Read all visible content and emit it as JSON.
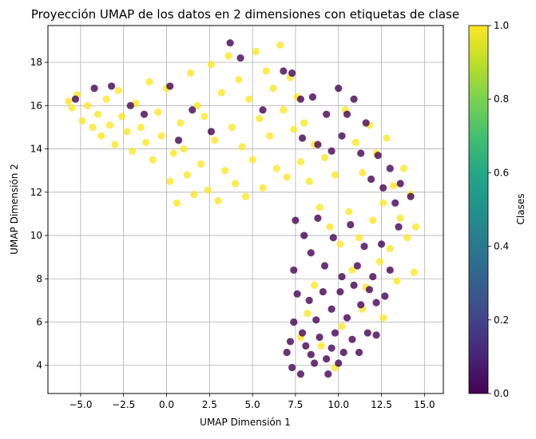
{
  "chart_data": {
    "type": "scatter",
    "title": "Proyección UMAP de los datos en 2 dimensiones con etiquetas de clase",
    "xlabel": "UMAP Dimensión 1",
    "ylabel": "UMAP Dimensión 2",
    "xlim": [
      -6.9,
      16.1
    ],
    "ylim": [
      2.7,
      19.7
    ],
    "xticks": [
      -5.0,
      -2.5,
      0.0,
      2.5,
      5.0,
      7.5,
      10.0,
      12.5,
      15.0
    ],
    "xtick_labels": [
      "−5.0",
      "−2.5",
      "0.0",
      "2.5",
      "5.0",
      "7.5",
      "10.0",
      "12.5",
      "15.0"
    ],
    "yticks": [
      4,
      6,
      8,
      10,
      12,
      14,
      16,
      18
    ],
    "ytick_labels": [
      "4",
      "6",
      "8",
      "10",
      "12",
      "14",
      "16",
      "18"
    ],
    "grid": true,
    "colorbar": {
      "label": "Clases",
      "range": [
        0.0,
        1.0
      ],
      "ticks": [
        0.0,
        0.2,
        0.4,
        0.6,
        0.8,
        1.0
      ],
      "tick_labels": [
        "0.0",
        "0.2",
        "0.4",
        "0.6",
        "0.8",
        "1.0"
      ],
      "colormap": "viridis"
    },
    "series": [
      {
        "class": 1,
        "color": "#fde725",
        "points": [
          [
            -5.7,
            16.2
          ],
          [
            -5.5,
            15.9
          ],
          [
            -5.2,
            16.5
          ],
          [
            -4.9,
            15.3
          ],
          [
            -4.6,
            16.0
          ],
          [
            -4.3,
            15.0
          ],
          [
            -4.0,
            15.6
          ],
          [
            -3.8,
            14.6
          ],
          [
            -3.5,
            16.3
          ],
          [
            -3.3,
            15.1
          ],
          [
            -3.0,
            14.2
          ],
          [
            -2.8,
            16.7
          ],
          [
            -2.6,
            15.5
          ],
          [
            -2.3,
            14.8
          ],
          [
            -2.0,
            13.9
          ],
          [
            -1.8,
            16.1
          ],
          [
            -1.5,
            15.0
          ],
          [
            -1.2,
            14.3
          ],
          [
            -1.0,
            17.1
          ],
          [
            -0.8,
            13.5
          ],
          [
            -0.5,
            15.7
          ],
          [
            -0.3,
            14.6
          ],
          [
            0.0,
            16.8
          ],
          [
            0.2,
            12.5
          ],
          [
            0.4,
            13.8
          ],
          [
            0.6,
            11.5
          ],
          [
            0.8,
            15.2
          ],
          [
            1.0,
            14.0
          ],
          [
            1.2,
            12.8
          ],
          [
            1.4,
            17.5
          ],
          [
            1.6,
            11.9
          ],
          [
            1.8,
            16.0
          ],
          [
            2.0,
            13.3
          ],
          [
            2.2,
            15.5
          ],
          [
            2.4,
            12.1
          ],
          [
            2.6,
            17.9
          ],
          [
            2.8,
            14.4
          ],
          [
            3.0,
            11.6
          ],
          [
            3.2,
            16.6
          ],
          [
            3.4,
            13.0
          ],
          [
            3.6,
            18.3
          ],
          [
            3.8,
            15.0
          ],
          [
            4.0,
            12.4
          ],
          [
            4.2,
            17.2
          ],
          [
            4.4,
            14.1
          ],
          [
            4.6,
            11.8
          ],
          [
            4.8,
            16.3
          ],
          [
            5.0,
            13.5
          ],
          [
            5.2,
            18.5
          ],
          [
            5.4,
            15.4
          ],
          [
            5.6,
            12.2
          ],
          [
            5.8,
            17.6
          ],
          [
            6.0,
            14.6
          ],
          [
            6.2,
            16.8
          ],
          [
            6.4,
            13.1
          ],
          [
            6.6,
            18.8
          ],
          [
            6.8,
            15.8
          ],
          [
            7.0,
            12.7
          ],
          [
            7.2,
            17.3
          ],
          [
            7.4,
            14.9
          ],
          [
            7.6,
            16.4
          ],
          [
            7.8,
            13.4
          ],
          [
            8.0,
            15.2
          ],
          [
            8.3,
            12.5
          ],
          [
            8.6,
            14.2
          ],
          [
            8.9,
            11.3
          ],
          [
            9.2,
            13.6
          ],
          [
            9.5,
            10.4
          ],
          [
            9.8,
            12.8
          ],
          [
            10.1,
            9.6
          ],
          [
            10.4,
            15.8
          ],
          [
            10.6,
            11.1
          ],
          [
            10.8,
            8.4
          ],
          [
            11.0,
            14.3
          ],
          [
            11.2,
            9.9
          ],
          [
            11.4,
            12.9
          ],
          [
            11.6,
            7.6
          ],
          [
            11.8,
            15.1
          ],
          [
            12.0,
            10.7
          ],
          [
            12.2,
            13.8
          ],
          [
            12.4,
            8.8
          ],
          [
            12.6,
            11.5
          ],
          [
            12.8,
            14.5
          ],
          [
            13.0,
            9.4
          ],
          [
            13.2,
            12.3
          ],
          [
            13.4,
            7.9
          ],
          [
            13.6,
            10.8
          ],
          [
            13.8,
            13.1
          ],
          [
            14.0,
            9.9
          ],
          [
            14.2,
            11.9
          ],
          [
            14.4,
            8.3
          ],
          [
            14.5,
            10.4
          ],
          [
            8.2,
            6.4
          ],
          [
            9.0,
            4.9
          ],
          [
            10.2,
            5.8
          ],
          [
            11.4,
            6.6
          ],
          [
            12.6,
            6.2
          ],
          [
            8.6,
            7.7
          ],
          [
            9.8,
            3.9
          ],
          [
            7.8,
            5.3
          ]
        ]
      },
      {
        "class": 0,
        "color": "#440154",
        "points": [
          [
            -5.3,
            16.3
          ],
          [
            -4.2,
            16.8
          ],
          [
            -3.2,
            16.9
          ],
          [
            -2.1,
            16.0
          ],
          [
            -1.3,
            15.6
          ],
          [
            0.2,
            16.9
          ],
          [
            0.7,
            14.4
          ],
          [
            1.5,
            15.8
          ],
          [
            2.6,
            14.8
          ],
          [
            3.7,
            18.9
          ],
          [
            4.3,
            18.2
          ],
          [
            5.6,
            15.8
          ],
          [
            6.8,
            17.6
          ],
          [
            7.3,
            17.5
          ],
          [
            7.8,
            16.3
          ],
          [
            7.9,
            14.5
          ],
          [
            8.5,
            16.4
          ],
          [
            8.8,
            14.2
          ],
          [
            9.3,
            15.6
          ],
          [
            9.6,
            13.9
          ],
          [
            10.0,
            16.8
          ],
          [
            10.2,
            14.6
          ],
          [
            10.5,
            15.6
          ],
          [
            10.9,
            16.3
          ],
          [
            11.3,
            13.8
          ],
          [
            11.6,
            15.2
          ],
          [
            11.9,
            12.6
          ],
          [
            12.3,
            13.7
          ],
          [
            12.6,
            12.2
          ],
          [
            13.0,
            13.1
          ],
          [
            13.3,
            11.5
          ],
          [
            13.6,
            12.4
          ],
          [
            14.2,
            11.8
          ],
          [
            7.5,
            10.7
          ],
          [
            8.0,
            10.0
          ],
          [
            8.4,
            9.2
          ],
          [
            8.8,
            10.8
          ],
          [
            9.2,
            8.6
          ],
          [
            9.7,
            9.9
          ],
          [
            10.2,
            8.1
          ],
          [
            10.7,
            10.5
          ],
          [
            11.1,
            8.6
          ],
          [
            11.5,
            9.5
          ],
          [
            12.0,
            8.1
          ],
          [
            12.5,
            9.6
          ],
          [
            13.0,
            8.4
          ],
          [
            13.5,
            10.4
          ],
          [
            7.4,
            8.4
          ],
          [
            7.6,
            7.3
          ],
          [
            8.3,
            7.0
          ],
          [
            8.7,
            6.1
          ],
          [
            9.1,
            7.4
          ],
          [
            9.6,
            6.6
          ],
          [
            10.1,
            7.4
          ],
          [
            10.5,
            6.2
          ],
          [
            10.9,
            7.7
          ],
          [
            11.3,
            6.8
          ],
          [
            11.8,
            7.5
          ],
          [
            12.2,
            6.9
          ],
          [
            12.7,
            7.2
          ],
          [
            7.4,
            6.0
          ],
          [
            7.9,
            5.5
          ],
          [
            8.4,
            4.5
          ],
          [
            8.9,
            5.3
          ],
          [
            9.3,
            4.3
          ],
          [
            9.8,
            5.5
          ],
          [
            10.3,
            4.6
          ],
          [
            10.8,
            5.2
          ],
          [
            11.2,
            4.6
          ],
          [
            11.7,
            5.5
          ],
          [
            12.2,
            5.4
          ],
          [
            7.0,
            4.6
          ],
          [
            7.3,
            3.9
          ],
          [
            7.8,
            3.6
          ],
          [
            8.6,
            4.1
          ],
          [
            9.4,
            3.6
          ],
          [
            10.0,
            4.1
          ],
          [
            7.2,
            5.1
          ],
          [
            8.1,
            4.9
          ],
          [
            9.6,
            4.8
          ]
        ]
      }
    ]
  }
}
